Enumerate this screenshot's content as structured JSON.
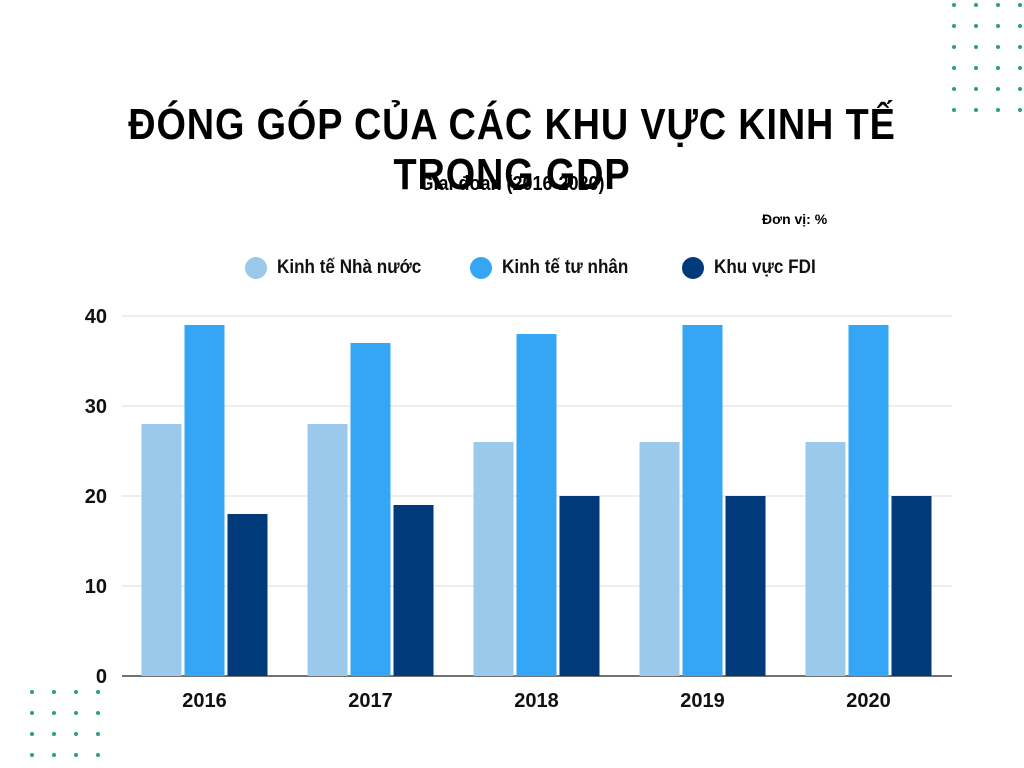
{
  "title": "ĐÓNG GÓP CỦA CÁC KHU VỰC KINH TẾ TRONG GDP",
  "subtitle": "Giai đoan (2016-2020)",
  "unit_label": "Đơn vị: %",
  "chart_data": {
    "type": "bar",
    "categories": [
      "2016",
      "2017",
      "2018",
      "2019",
      "2020"
    ],
    "series": [
      {
        "name": "Kinh tế Nhà nước",
        "color": "#9bc9ec",
        "values": [
          28,
          28,
          26,
          26,
          26
        ]
      },
      {
        "name": "Kinh tế tư nhân",
        "color": "#35a5f5",
        "values": [
          39,
          37,
          38,
          39,
          39
        ]
      },
      {
        "name": "Khu vực FDI",
        "color": "#003a7a",
        "values": [
          18,
          19,
          20,
          20,
          20
        ]
      }
    ],
    "yticks": [
      "0",
      "10",
      "20",
      "30",
      "40"
    ],
    "ylim": [
      0,
      40
    ],
    "grid": true,
    "legend_position": "top"
  }
}
